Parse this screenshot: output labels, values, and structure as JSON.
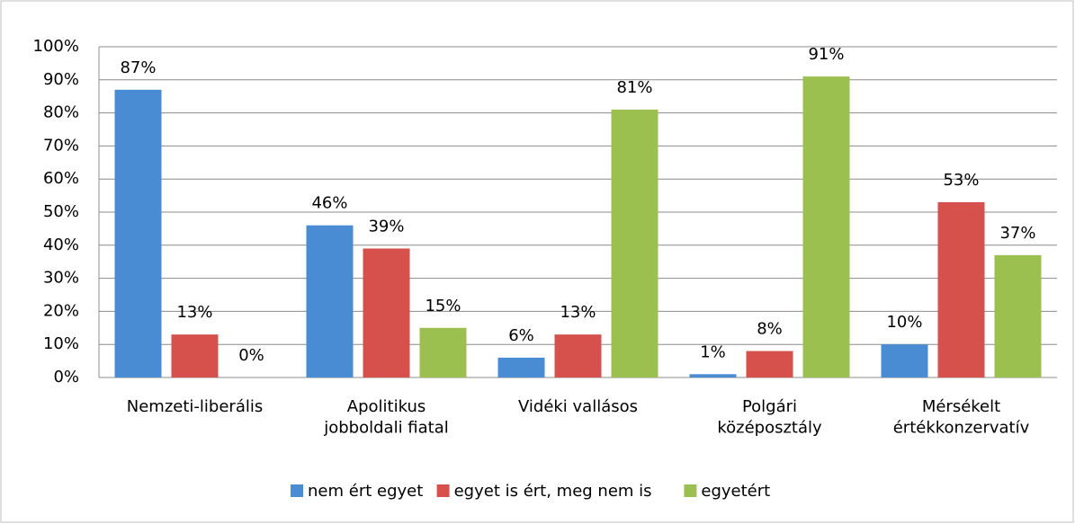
{
  "chart_data": {
    "type": "bar",
    "categories": [
      "Nemzeti-liberális",
      "Apolitikus\njobboldali fiatal",
      "Vidéki vallásos",
      "Polgári\nközéposztály",
      "Mérsékelt\nértékkonzervatív"
    ],
    "series": [
      {
        "name": "nem ért egyet",
        "color": "#4a8cd3",
        "values": [
          87,
          46,
          6,
          1,
          10
        ],
        "value_labels": [
          "87%",
          "46%",
          "6%",
          "1%",
          "10%"
        ]
      },
      {
        "name": "egyet is ért, meg nem is",
        "color": "#d6504c",
        "values": [
          13,
          39,
          13,
          8,
          53
        ],
        "value_labels": [
          "13%",
          "39%",
          "13%",
          "8%",
          "53%"
        ]
      },
      {
        "name": "egyetért",
        "color": "#9cc04f",
        "values": [
          0,
          15,
          81,
          91,
          37
        ],
        "value_labels": [
          "0%",
          "15%",
          "81%",
          "91%",
          "37%"
        ]
      }
    ],
    "ylim": [
      0,
      100
    ],
    "yticks": [
      {
        "value": 0,
        "label": "0%"
      },
      {
        "value": 10,
        "label": "10%"
      },
      {
        "value": 20,
        "label": "20%"
      },
      {
        "value": 30,
        "label": "30%"
      },
      {
        "value": 40,
        "label": "40%"
      },
      {
        "value": 50,
        "label": "50%"
      },
      {
        "value": 60,
        "label": "60%"
      },
      {
        "value": 70,
        "label": "70%"
      },
      {
        "value": 80,
        "label": "80%"
      },
      {
        "value": 90,
        "label": "90%"
      },
      {
        "value": 100,
        "label": "100%"
      }
    ],
    "grid": true,
    "legend": "bottom"
  }
}
